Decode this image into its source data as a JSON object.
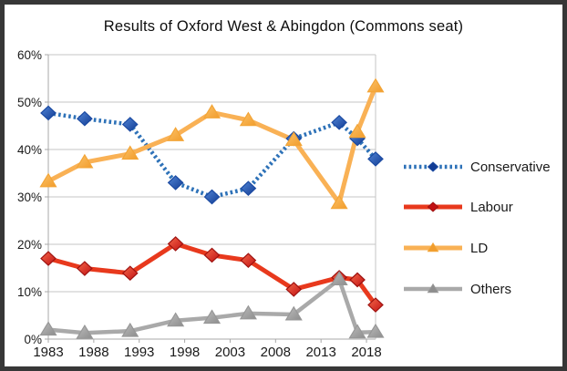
{
  "frame": {
    "border_color": "#373737",
    "background": "#ffffff"
  },
  "chart_data": {
    "type": "line",
    "title": "Results of Oxford West & Abingdon (Commons seat)",
    "xlabel": "",
    "ylabel": "",
    "xlim": [
      1983,
      2019
    ],
    "ylim": [
      0,
      60
    ],
    "grid": {
      "horizontal": true,
      "vertical": false,
      "line_color": "#c6c6c6",
      "axis_color": "#a8a8a8",
      "label_color": "#1a1a1a"
    },
    "legend_position": "right",
    "x_years": [
      1983,
      1987,
      1992,
      1997,
      2001,
      2005,
      2010,
      2015,
      2017,
      2019
    ],
    "x_tick_years": [
      1983,
      1988,
      1993,
      1998,
      2003,
      2008,
      2013,
      2018
    ],
    "x_tick_labels": [
      "1983",
      "1988",
      "1993",
      "1998",
      "2003",
      "2008",
      "2013",
      "2018"
    ],
    "y_tick_values": [
      0,
      10,
      20,
      30,
      40,
      50,
      60
    ],
    "y_tick_labels": [
      "0%",
      "10%",
      "20%",
      "30%",
      "40%",
      "50%",
      "60%"
    ],
    "series": [
      {
        "name": "Conservative",
        "marker": "diamond",
        "line_style": "dotted",
        "line_color": "#2e72b8",
        "line_width": 4.5,
        "marker_fill": "#5286d6",
        "marker_fill2": "#123c94",
        "marker_stroke": "#1b4aa2",
        "values": [
          47.7,
          46.5,
          45.3,
          33.0,
          30.0,
          31.8,
          42.3,
          45.7,
          42.3,
          38.0
        ]
      },
      {
        "name": "Labour",
        "marker": "diamond",
        "line_style": "solid",
        "line_color": "#e8391d",
        "line_width": 5,
        "marker_fill": "#f4684a",
        "marker_fill2": "#c21113",
        "marker_stroke": "#9e1210",
        "values": [
          17.0,
          14.9,
          13.9,
          20.1,
          17.7,
          16.6,
          10.5,
          13.0,
          12.5,
          7.2
        ]
      },
      {
        "name": "LD",
        "marker": "triangle",
        "line_style": "solid",
        "line_color": "#f9b155",
        "line_width": 5,
        "marker_fill": "#fcc268",
        "marker_fill2": "#f19c2c",
        "marker_stroke": "#f3a537",
        "values": [
          33.3,
          37.3,
          39.1,
          43.0,
          47.8,
          46.2,
          42.0,
          28.7,
          43.7,
          53.3
        ]
      },
      {
        "name": "Others",
        "marker": "triangle",
        "line_style": "solid",
        "line_color": "#a9a9a9",
        "line_width": 4.5,
        "marker_fill": "#bcbcbc",
        "marker_fill2": "#8d8d8d",
        "marker_stroke": "#979797",
        "values": [
          2.0,
          1.3,
          1.7,
          3.9,
          4.5,
          5.4,
          5.2,
          12.6,
          1.4,
          1.5
        ]
      }
    ]
  }
}
